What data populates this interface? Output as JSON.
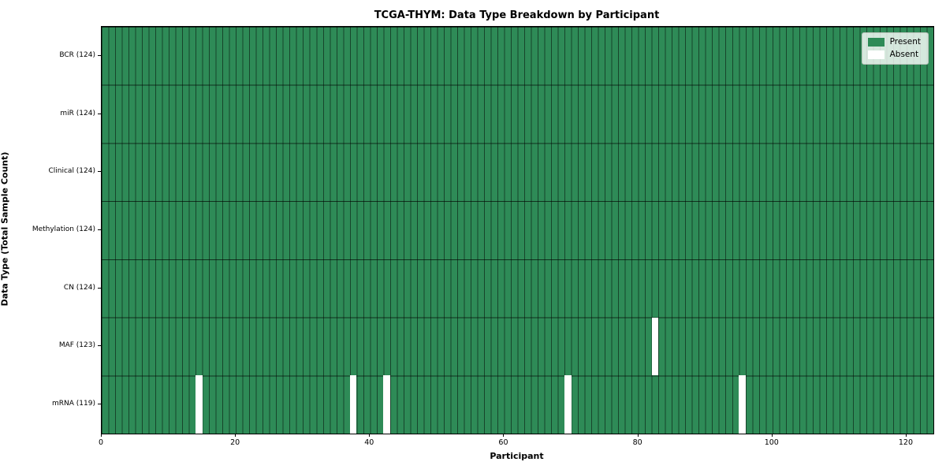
{
  "title": "TCGA-THYM: Data Type Breakdown by Participant",
  "chart_data": {
    "type": "heatmap",
    "title": "TCGA-THYM: Data Type Breakdown by Participant",
    "xlabel": "Participant",
    "ylabel": "Data Type (Total Sample Count)",
    "n_participants": 124,
    "xlim": [
      0,
      124
    ],
    "x_ticks": [
      0,
      20,
      40,
      60,
      80,
      100,
      120
    ],
    "grid": true,
    "legend": {
      "position": "upper right",
      "entries": [
        {
          "label": "Present",
          "color": "#2e8b57"
        },
        {
          "label": "Absent",
          "color": "#ffffff"
        }
      ]
    },
    "rows": [
      {
        "label": "BCR (124)",
        "name": "BCR",
        "present_count": 124,
        "absent_participants": []
      },
      {
        "label": "miR (124)",
        "name": "miR",
        "present_count": 124,
        "absent_participants": []
      },
      {
        "label": "Clinical (124)",
        "name": "Clinical",
        "present_count": 124,
        "absent_participants": []
      },
      {
        "label": "Methylation (124)",
        "name": "Methylation",
        "present_count": 124,
        "absent_participants": []
      },
      {
        "label": "CN (124)",
        "name": "CN",
        "present_count": 124,
        "absent_participants": []
      },
      {
        "label": "MAF (123)",
        "name": "MAF",
        "present_count": 123,
        "absent_participants": [
          82
        ]
      },
      {
        "label": "mRNA (119)",
        "name": "mRNA",
        "present_count": 119,
        "absent_participants": [
          14,
          37,
          42,
          69,
          95
        ]
      }
    ],
    "colors": {
      "present": "#2e8b57",
      "absent": "#ffffff",
      "cell_edge": "rgba(0,0,0,0.5)",
      "row_separator": "rgba(0,0,0,0.65)",
      "spine": "#000000",
      "legend_bg": "rgba(255,255,255,0.8)"
    }
  }
}
